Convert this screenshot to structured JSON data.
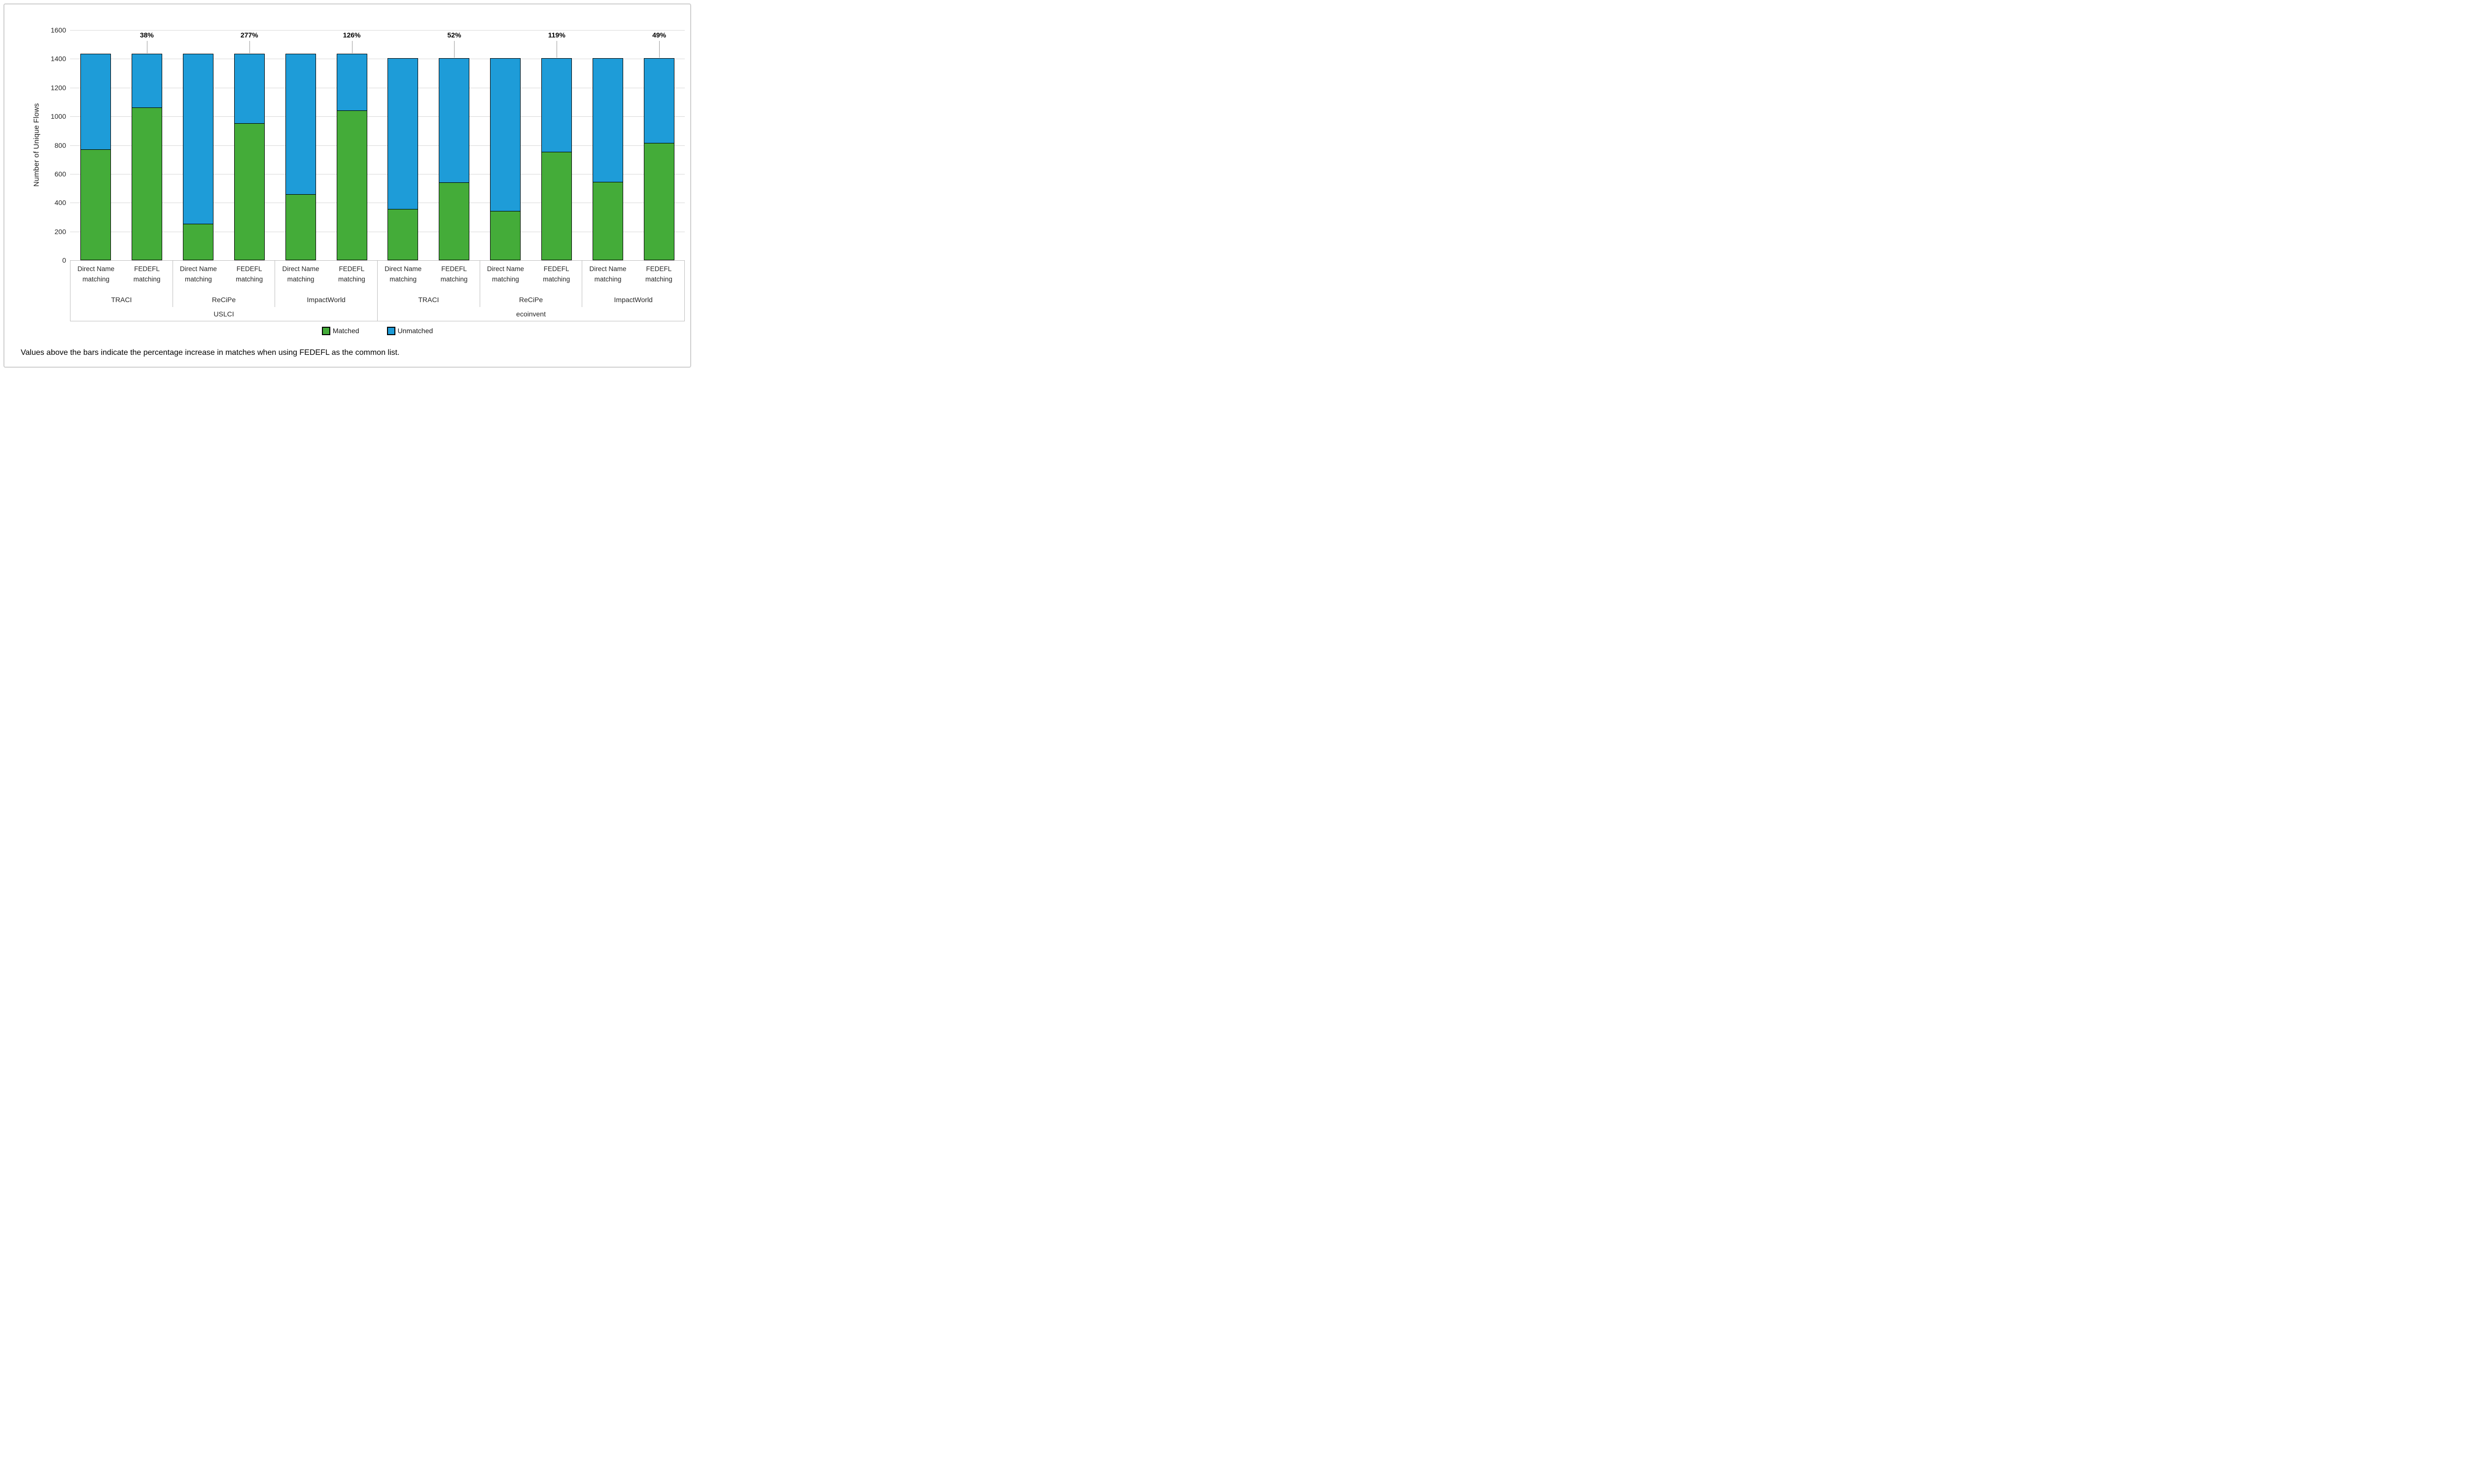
{
  "figure": {
    "y_axis_title": "Number of Unique Flows",
    "caption": "Values above the bars indicate the percentage increase in matches when using FEDEFL as the common list."
  },
  "legend": {
    "items": [
      {
        "label": "Matched",
        "color": "#44ac39"
      },
      {
        "label": "Unmatched",
        "color": "#1e9cd8"
      }
    ]
  },
  "chart_data": {
    "type": "bar",
    "stacked": true,
    "title": "",
    "xlabel": "",
    "ylabel": "Number of Unique Flows",
    "ylim": [
      0,
      1600
    ],
    "yticks": [
      0,
      200,
      400,
      600,
      800,
      1000,
      1200,
      1400,
      1600
    ],
    "grid": true,
    "legend_position": "bottom",
    "series_names": [
      "Matched",
      "Unmatched"
    ],
    "series_colors": {
      "Matched": "#44ac39",
      "Unmatched": "#1e9cd8"
    },
    "annotation_meaning": "percent increase in matches when using FEDEFL as the common list",
    "datasets": [
      {
        "name": "USLCI",
        "groups": [
          {
            "name": "TRACI",
            "bars": [
              {
                "category": "Direct Name matching",
                "Matched": 770,
                "Unmatched": 665,
                "total": 1435,
                "annotation": ""
              },
              {
                "category": "FEDEFL matching",
                "Matched": 1062,
                "Unmatched": 373,
                "total": 1435,
                "annotation": "38%"
              }
            ]
          },
          {
            "name": "ReCiPe",
            "bars": [
              {
                "category": "Direct Name matching",
                "Matched": 253,
                "Unmatched": 1182,
                "total": 1435,
                "annotation": ""
              },
              {
                "category": "FEDEFL matching",
                "Matched": 954,
                "Unmatched": 481,
                "total": 1435,
                "annotation": "277%"
              }
            ]
          },
          {
            "name": "ImpactWorld",
            "bars": [
              {
                "category": "Direct Name matching",
                "Matched": 461,
                "Unmatched": 974,
                "total": 1435,
                "annotation": ""
              },
              {
                "category": "FEDEFL matching",
                "Matched": 1041,
                "Unmatched": 394,
                "total": 1435,
                "annotation": "126%"
              }
            ]
          }
        ]
      },
      {
        "name": "ecoinvent",
        "groups": [
          {
            "name": "TRACI",
            "bars": [
              {
                "category": "Direct Name matching",
                "Matched": 356,
                "Unmatched": 1049,
                "total": 1405,
                "annotation": ""
              },
              {
                "category": "FEDEFL matching",
                "Matched": 541,
                "Unmatched": 864,
                "total": 1405,
                "annotation": "52%"
              }
            ]
          },
          {
            "name": "ReCiPe",
            "bars": [
              {
                "category": "Direct Name matching",
                "Matched": 344,
                "Unmatched": 1061,
                "total": 1405,
                "annotation": ""
              },
              {
                "category": "FEDEFL matching",
                "Matched": 753,
                "Unmatched": 652,
                "total": 1405,
                "annotation": "119%"
              }
            ]
          },
          {
            "name": "ImpactWorld",
            "bars": [
              {
                "category": "Direct Name matching",
                "Matched": 546,
                "Unmatched": 859,
                "total": 1405,
                "annotation": ""
              },
              {
                "category": "FEDEFL matching",
                "Matched": 814,
                "Unmatched": 591,
                "total": 1405,
                "annotation": "49%"
              }
            ]
          }
        ]
      }
    ]
  }
}
